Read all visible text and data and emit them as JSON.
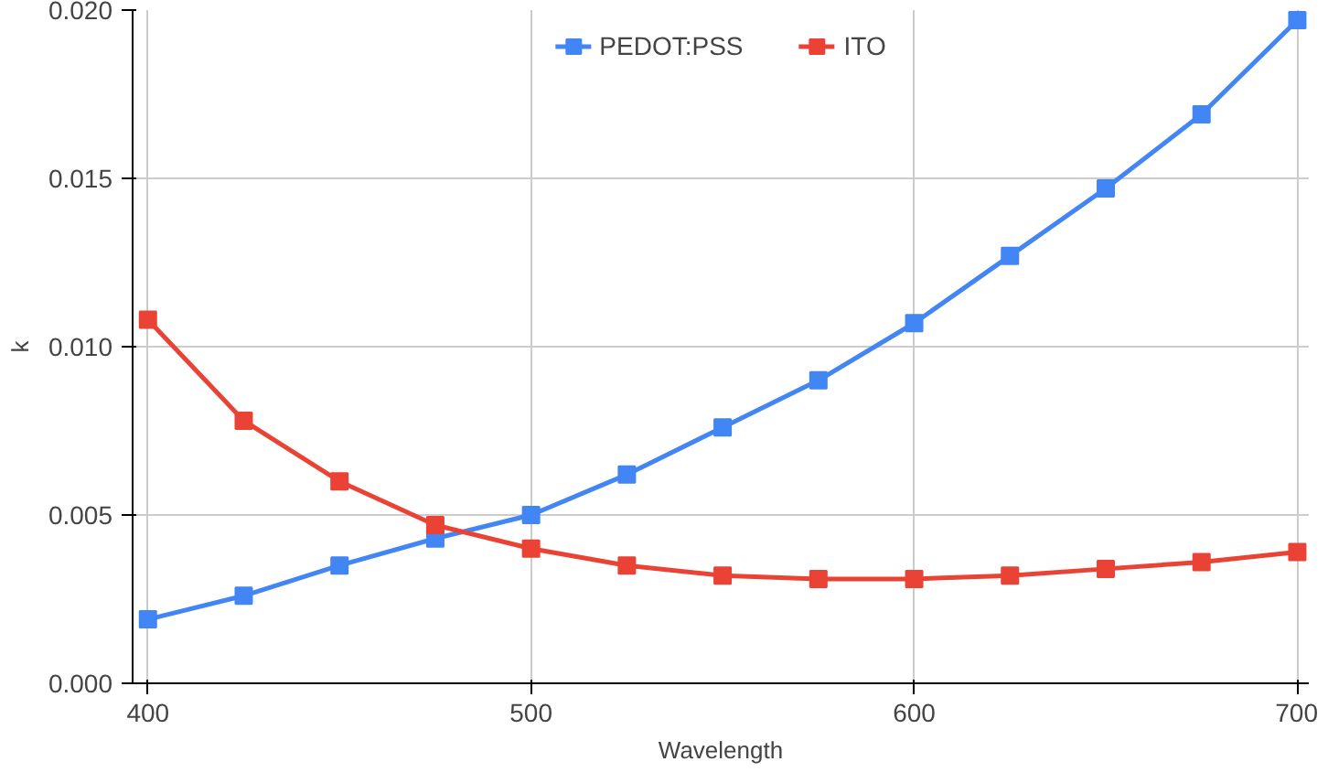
{
  "chart_data": {
    "type": "line",
    "xlabel": "Wavelength",
    "ylabel": "k",
    "x": [
      400,
      425,
      450,
      475,
      500,
      525,
      550,
      575,
      600,
      625,
      650,
      675,
      700
    ],
    "series": [
      {
        "name": "PEDOT:PSS",
        "color": "#4285f4",
        "values": [
          0.0019,
          0.0026,
          0.0035,
          0.0043,
          0.005,
          0.0062,
          0.0076,
          0.009,
          0.0107,
          0.0127,
          0.0147,
          0.0169,
          0.0197
        ]
      },
      {
        "name": "ITO",
        "color": "#ea4335",
        "values": [
          0.0108,
          0.0078,
          0.006,
          0.0047,
          0.004,
          0.0035,
          0.0032,
          0.0031,
          0.0031,
          0.0032,
          0.0034,
          0.0036,
          0.0039
        ]
      }
    ],
    "xlim": [
      396,
      703
    ],
    "ylim": [
      0,
      0.02
    ],
    "xticks": [
      400,
      500,
      600,
      700
    ],
    "yticks": [
      {
        "value": 0,
        "label": "0.000"
      },
      {
        "value": 0.005,
        "label": "0.005"
      },
      {
        "value": 0.01,
        "label": "0.010"
      },
      {
        "value": 0.015,
        "label": "0.015"
      },
      {
        "value": 0.02,
        "label": "0.020"
      }
    ],
    "grid": true,
    "legend": "top",
    "marker": "square",
    "line_style": "solid"
  }
}
